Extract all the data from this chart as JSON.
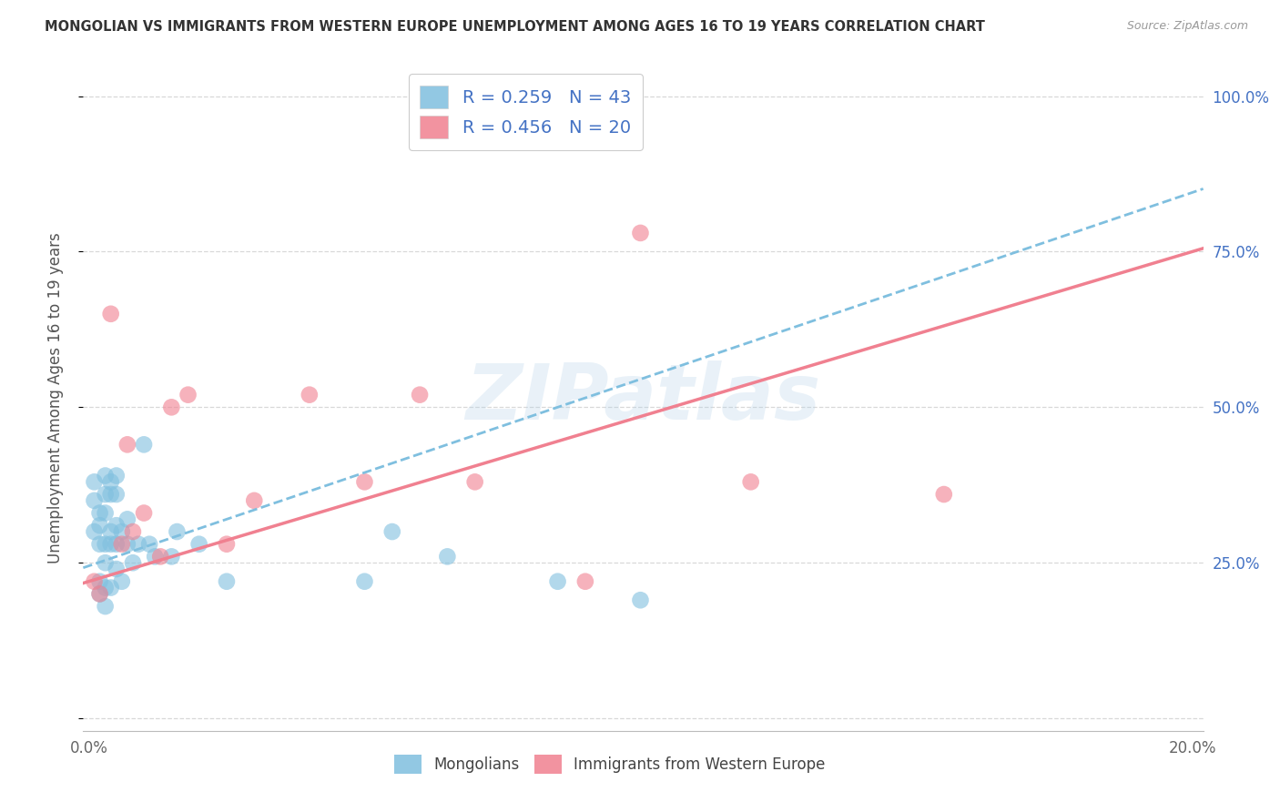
{
  "title": "MONGOLIAN VS IMMIGRANTS FROM WESTERN EUROPE UNEMPLOYMENT AMONG AGES 16 TO 19 YEARS CORRELATION CHART",
  "source": "Source: ZipAtlas.com",
  "ylabel": "Unemployment Among Ages 16 to 19 years",
  "xlim": [
    -0.001,
    0.202
  ],
  "ylim": [
    -0.02,
    1.05
  ],
  "yticks": [
    0.0,
    0.25,
    0.5,
    0.75,
    1.0
  ],
  "ytick_labels_right": [
    "",
    "25.0%",
    "50.0%",
    "75.0%",
    "100.0%"
  ],
  "xticks": [
    0.0,
    0.05,
    0.1,
    0.15,
    0.2
  ],
  "xtick_labels": [
    "0.0%",
    "",
    "",
    "",
    "20.0%"
  ],
  "mongolian_color": "#7fbfdf",
  "western_color": "#f08090",
  "mongolian_R": 0.259,
  "mongolian_N": 43,
  "western_R": 0.456,
  "western_N": 20,
  "mongolian_x": [
    0.001,
    0.001,
    0.001,
    0.002,
    0.002,
    0.002,
    0.002,
    0.002,
    0.003,
    0.003,
    0.003,
    0.003,
    0.003,
    0.003,
    0.003,
    0.004,
    0.004,
    0.004,
    0.004,
    0.004,
    0.005,
    0.005,
    0.005,
    0.005,
    0.005,
    0.006,
    0.006,
    0.007,
    0.007,
    0.008,
    0.009,
    0.01,
    0.011,
    0.012,
    0.015,
    0.016,
    0.02,
    0.025,
    0.05,
    0.055,
    0.065,
    0.085,
    0.1
  ],
  "mongolian_y": [
    0.3,
    0.35,
    0.38,
    0.28,
    0.31,
    0.33,
    0.22,
    0.2,
    0.33,
    0.36,
    0.39,
    0.28,
    0.25,
    0.21,
    0.18,
    0.36,
    0.38,
    0.3,
    0.28,
    0.21,
    0.36,
    0.39,
    0.31,
    0.28,
    0.24,
    0.3,
    0.22,
    0.32,
    0.28,
    0.25,
    0.28,
    0.44,
    0.28,
    0.26,
    0.26,
    0.3,
    0.28,
    0.22,
    0.22,
    0.3,
    0.26,
    0.22,
    0.19
  ],
  "western_x": [
    0.001,
    0.002,
    0.004,
    0.006,
    0.007,
    0.008,
    0.01,
    0.013,
    0.015,
    0.018,
    0.025,
    0.03,
    0.04,
    0.05,
    0.06,
    0.07,
    0.09,
    0.1,
    0.12,
    0.155
  ],
  "western_y": [
    0.22,
    0.2,
    0.65,
    0.28,
    0.44,
    0.3,
    0.33,
    0.26,
    0.5,
    0.52,
    0.28,
    0.35,
    0.52,
    0.38,
    0.52,
    0.38,
    0.22,
    0.78,
    0.38,
    0.36
  ],
  "watermark": "ZIPatlas",
  "grid_color": "#d8d8d8",
  "bg_color": "#ffffff",
  "title_color": "#333333",
  "source_color": "#999999",
  "tick_color_y": "#4472c4",
  "tick_color_x": "#666666",
  "mongolian_trendline_intercept": 0.245,
  "mongolian_trendline_slope": 3.0,
  "western_trendline_intercept": 0.22,
  "western_trendline_slope": 2.65
}
